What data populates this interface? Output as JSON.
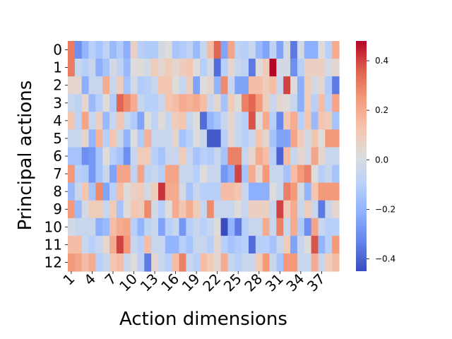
{
  "chart_data": {
    "type": "heatmap",
    "xlabel": "Action dimensions",
    "ylabel": "Principal actions",
    "x_tick_labels": [
      "1",
      "4",
      "7",
      "10",
      "13",
      "16",
      "19",
      "22",
      "25",
      "28",
      "31",
      "34",
      "37"
    ],
    "x_tick_columns": [
      1,
      4,
      7,
      10,
      13,
      16,
      19,
      22,
      25,
      28,
      31,
      34,
      37
    ],
    "y_tick_labels": [
      "0",
      "1",
      "2",
      "3",
      "4",
      "5",
      "6",
      "7",
      "8",
      "9",
      "10",
      "11",
      "12"
    ],
    "colorbar_tick_labels": [
      "0.4",
      "0.2",
      "0.0",
      "−0.2",
      "−0.4"
    ],
    "colorbar_ticks": [
      0.4,
      0.2,
      0.0,
      -0.2,
      -0.4
    ],
    "colormap": "coolwarm",
    "vmin": -0.45,
    "vmax": 0.48,
    "n_cols": 39,
    "values": [
      [
        0.31,
        -0.3,
        -0.2,
        -0.1,
        -0.15,
        -0.08,
        -0.18,
        -0.12,
        -0.22,
        0.08,
        -0.1,
        -0.12,
        -0.12,
        -0.02,
        0.02,
        -0.14,
        -0.12,
        -0.08,
        -0.18,
        -0.05,
        0.15,
        0.35,
        -0.25,
        0.22,
        -0.08,
        -0.1,
        -0.05,
        -0.18,
        -0.25,
        -0.08,
        -0.25,
        -0.02,
        -0.35,
        -0.02,
        -0.22,
        -0.22,
        0.02,
        -0.1,
        0.2
      ],
      [
        0.31,
        -0.05,
        -0.1,
        -0.05,
        -0.22,
        -0.15,
        -0.02,
        -0.08,
        -0.18,
        0.02,
        0.02,
        -0.02,
        0.1,
        0.05,
        0.1,
        0.05,
        0.1,
        0.12,
        0.02,
        -0.1,
        -0.02,
        -0.38,
        -0.1,
        0.05,
        -0.05,
        -0.08,
        -0.35,
        0.02,
        0.1,
        0.48,
        -0.02,
        -0.02,
        -0.3,
        -0.1,
        0.08,
        0.08,
        0.08,
        -0.02,
        0.05
      ],
      [
        0.05,
        0.05,
        -0.22,
        -0.05,
        -0.05,
        0.2,
        -0.05,
        0.1,
        -0.15,
        -0.02,
        -0.12,
        -0.1,
        -0.05,
        0.12,
        0.12,
        0.02,
        -0.05,
        0.08,
        -0.25,
        0.02,
        0.05,
        -0.2,
        0.28,
        -0.05,
        -0.25,
        -0.25,
        0.15,
        0.15,
        0.1,
        0.15,
        -0.05,
        0.4,
        0.02,
        -0.22,
        0.1,
        -0.02,
        0.05,
        -0.12,
        -0.35
      ],
      [
        -0.05,
        -0.08,
        0.05,
        -0.18,
        -0.1,
        0.02,
        -0.12,
        0.35,
        0.28,
        0.2,
        -0.05,
        -0.1,
        -0.1,
        -0.05,
        0.12,
        0.15,
        0.2,
        0.18,
        0.2,
        0.15,
        -0.05,
        0.05,
        -0.15,
        0.1,
        0.02,
        0.3,
        0.35,
        0.25,
        0.1,
        -0.05,
        0.05,
        0.02,
        -0.05,
        -0.22,
        0.1,
        -0.1,
        0.15,
        -0.1,
        0.22
      ],
      [
        0.12,
        -0.08,
        0.22,
        -0.05,
        0.08,
        -0.18,
        -0.05,
        0.12,
        -0.05,
        -0.12,
        -0.25,
        0.02,
        -0.08,
        0.02,
        -0.05,
        0.1,
        0.12,
        -0.05,
        0.02,
        -0.38,
        -0.2,
        -0.15,
        -0.05,
        0.05,
        -0.05,
        -0.1,
        0.38,
        0.02,
        0.2,
        -0.1,
        -0.32,
        0.12,
        0.2,
        -0.1,
        0.12,
        -0.18,
        0.12,
        0.1,
        -0.15
      ],
      [
        -0.05,
        -0.05,
        0.05,
        -0.2,
        0.18,
        -0.1,
        0.12,
        -0.05,
        -0.2,
        0.02,
        -0.12,
        0.18,
        -0.05,
        -0.05,
        -0.05,
        0.05,
        -0.15,
        -0.1,
        0.02,
        -0.05,
        -0.42,
        -0.42,
        -0.1,
        0.05,
        -0.05,
        -0.1,
        -0.05,
        0.12,
        0.05,
        -0.15,
        -0.25,
        -0.25,
        0.22,
        0.1,
        -0.02,
        0.12,
        0.02,
        0.25,
        0.25
      ],
      [
        -0.15,
        -0.15,
        -0.3,
        -0.28,
        -0.15,
        0.02,
        -0.1,
        -0.15,
        -0.3,
        -0.05,
        0.1,
        0.1,
        -0.1,
        -0.15,
        -0.05,
        -0.05,
        0.1,
        -0.05,
        -0.15,
        -0.1,
        -0.12,
        -0.05,
        -0.15,
        0.3,
        0.3,
        -0.05,
        0.05,
        0.2,
        0.15,
        -0.1,
        -0.4,
        0.15,
        -0.05,
        0.05,
        -0.02,
        0.22,
        0.05,
        -0.05,
        -0.05
      ],
      [
        0.25,
        -0.1,
        -0.12,
        -0.28,
        -0.15,
        -0.05,
        -0.25,
        0.22,
        0.22,
        -0.08,
        0.22,
        -0.08,
        -0.05,
        -0.1,
        0.22,
        0.22,
        -0.05,
        -0.05,
        -0.1,
        0.02,
        -0.05,
        -0.05,
        -0.28,
        -0.22,
        0.4,
        -0.15,
        0.2,
        0.05,
        0.25,
        -0.05,
        -0.05,
        -0.15,
        0.15,
        0.25,
        0.3,
        0.02,
        -0.1,
        -0.05,
        -0.15
      ],
      [
        -0.18,
        -0.05,
        0.12,
        -0.15,
        0.28,
        -0.25,
        -0.1,
        0.15,
        0.02,
        0.08,
        0.1,
        -0.02,
        0.1,
        0.42,
        0.2,
        0.2,
        -0.02,
        -0.15,
        -0.05,
        -0.1,
        -0.1,
        -0.1,
        0.15,
        0.15,
        0.12,
        -0.05,
        -0.22,
        -0.22,
        -0.22,
        0.02,
        -0.05,
        0.3,
        0.25,
        -0.02,
        -0.2,
        0.12,
        0.25,
        0.25,
        0.25
      ],
      [
        0.25,
        -0.18,
        -0.02,
        0.1,
        0.1,
        -0.05,
        0.1,
        -0.15,
        0.02,
        0.12,
        0.1,
        0.28,
        -0.02,
        -0.1,
        0.02,
        0.2,
        0.12,
        0.2,
        0.1,
        -0.05,
        0.28,
        -0.05,
        -0.05,
        -0.05,
        0.02,
        -0.05,
        0.08,
        0.08,
        0.08,
        -0.05,
        0.4,
        0.1,
        0.2,
        -0.05,
        0.1,
        -0.05,
        -0.35,
        -0.05,
        0.05
      ],
      [
        -0.02,
        -0.05,
        -0.05,
        -0.05,
        -0.22,
        -0.18,
        0.15,
        0.2,
        0.22,
        -0.1,
        -0.2,
        -0.08,
        -0.05,
        -0.25,
        -0.1,
        -0.05,
        -0.28,
        -0.1,
        -0.05,
        -0.1,
        -0.05,
        0.02,
        -0.45,
        -0.2,
        -0.35,
        -0.1,
        -0.05,
        -0.05,
        0.2,
        -0.05,
        0.3,
        -0.05,
        0.2,
        -0.12,
        -0.3,
        0.22,
        -0.05,
        -0.1,
        -0.1
      ],
      [
        0.15,
        0.15,
        -0.05,
        -0.1,
        -0.05,
        0.05,
        0.2,
        0.4,
        0.25,
        -0.05,
        -0.1,
        0.15,
        -0.05,
        -0.05,
        -0.2,
        -0.2,
        -0.1,
        -0.15,
        -0.05,
        -0.05,
        -0.1,
        0.05,
        -0.1,
        -0.15,
        -0.12,
        -0.1,
        -0.38,
        -0.1,
        -0.1,
        -0.15,
        -0.05,
        0.1,
        -0.25,
        -0.05,
        0.02,
        0.38,
        -0.2,
        -0.1,
        0.25
      ],
      [
        0.25,
        0.22,
        0.15,
        0.2,
        -0.1,
        -0.05,
        0.12,
        0.15,
        -0.05,
        0.02,
        -0.08,
        -0.35,
        0.05,
        -0.05,
        -0.1,
        0.15,
        0.3,
        -0.05,
        -0.1,
        0.15,
        0.1,
        0.05,
        0.2,
        -0.05,
        -0.1,
        -0.05,
        -0.05,
        0.1,
        0.25,
        -0.05,
        -0.15,
        0.25,
        0.25,
        -0.05,
        -0.05,
        0.2,
        -0.05,
        0.1,
        0.15
      ]
    ]
  }
}
